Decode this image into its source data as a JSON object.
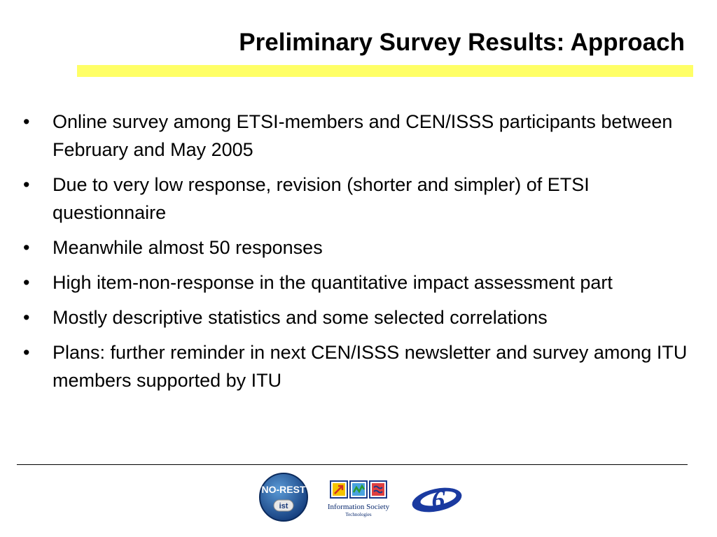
{
  "slide": {
    "title": "Preliminary Survey Results: Approach",
    "accent_color": "#ffff66",
    "bullet_symbol": "•",
    "bullets": [
      "Online survey among ETSI-members and CEN/ISSS participants between February and May 2005",
      "Due to very low response, revision (shorter and simpler) of ETSI questionnaire",
      "Meanwhile almost 50 responses",
      "High item-non-response in the quantitative impact assessment part",
      "Mostly descriptive statistics and some selected correlations",
      "Plans: further reminder in next CEN/ISSS newsletter and survey among ITU members supported by ITU"
    ]
  },
  "footer": {
    "logos": [
      {
        "name": "no-rest-logo",
        "text": "NO-REST",
        "subtext": "ist"
      },
      {
        "name": "information-society-technologies-logo",
        "text": "Information Society",
        "subtext": "Technologies"
      },
      {
        "name": "fp6-logo",
        "text": "6"
      }
    ]
  }
}
